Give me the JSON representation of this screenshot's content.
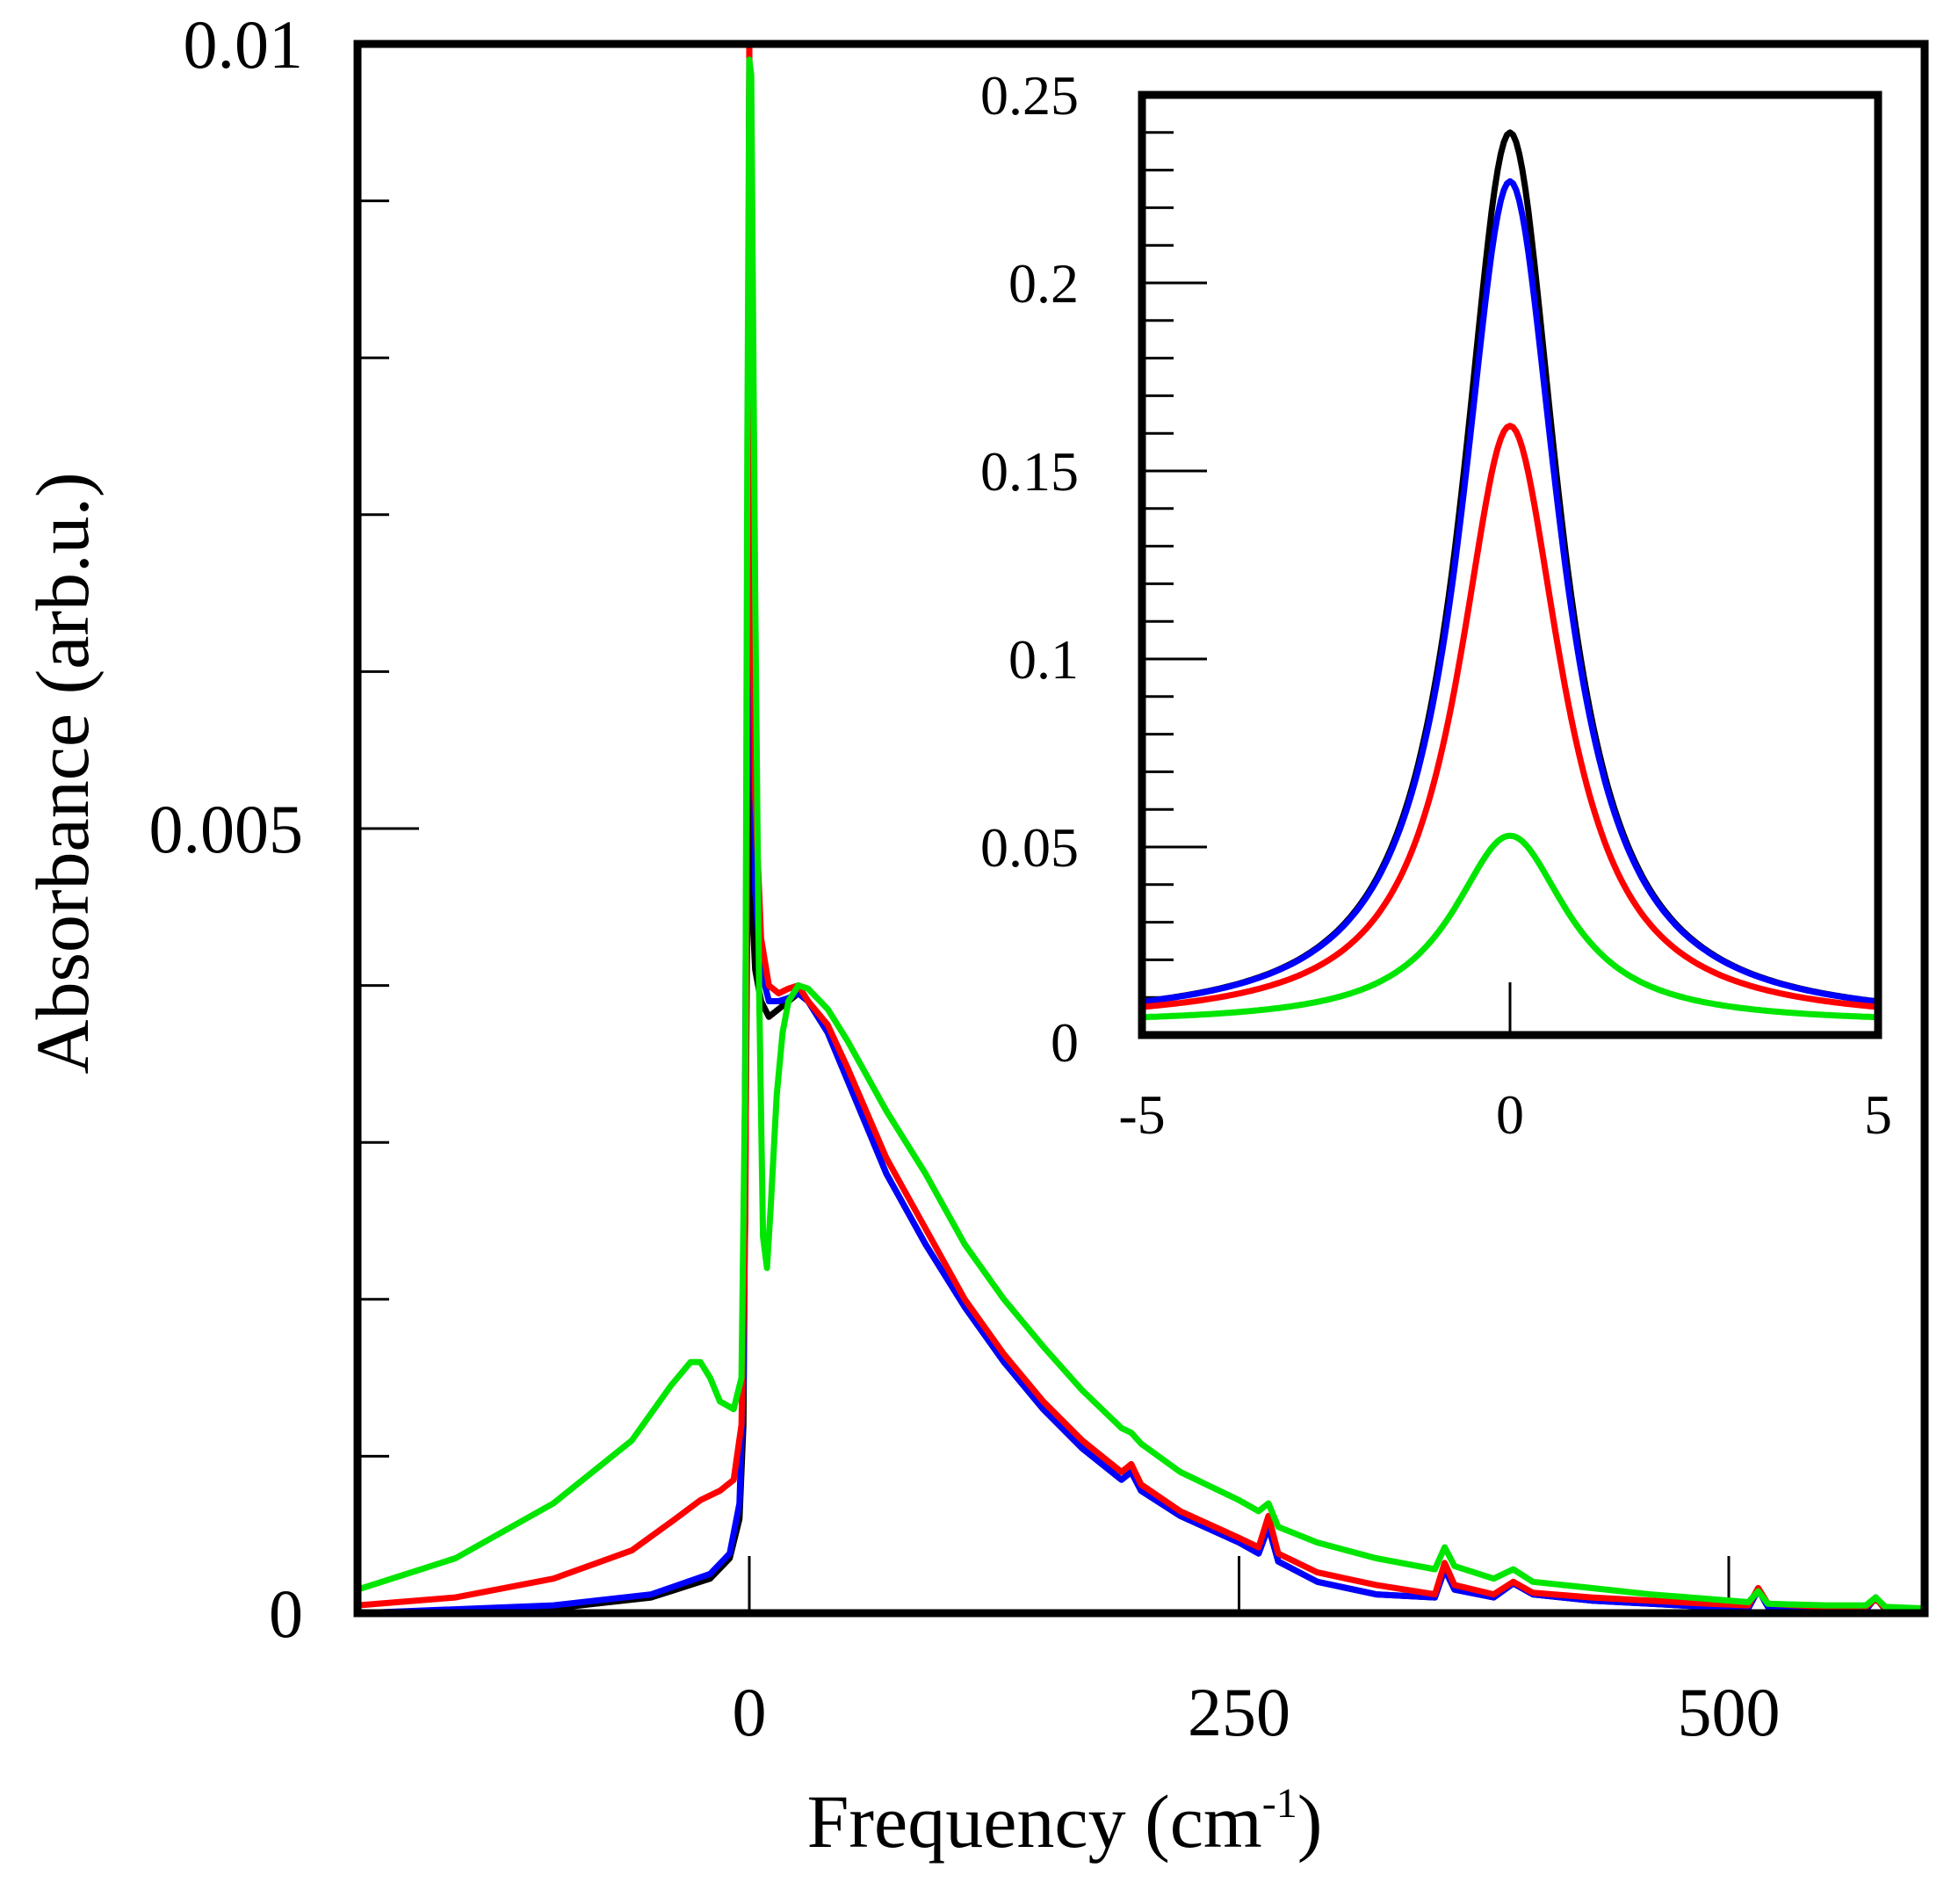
{
  "chart_data": {
    "main": {
      "type": "line",
      "xlabel": {
        "text": "Frequency (cm",
        "sup": "-1",
        "close": ")"
      },
      "ylabel": "Absorbance (arb.u.)",
      "xlim": [
        -200,
        600
      ],
      "ylim": [
        0,
        0.01
      ],
      "xticks": [
        0,
        250,
        500
      ],
      "xtick_labels": [
        "0",
        "250",
        "500"
      ],
      "yticks_major": [
        0,
        0.005,
        0.01
      ],
      "ytick_labels": [
        "0",
        "0.005",
        "0.01"
      ],
      "yticks_minor": [
        0.001,
        0.002,
        0.003,
        0.004,
        0.006,
        0.007,
        0.008,
        0.009
      ],
      "series": [
        {
          "name": "black",
          "color": "#000000",
          "x": [
            -200,
            -100,
            -50,
            -20,
            -10,
            -5,
            -3,
            -1,
            0,
            1,
            3,
            6,
            10,
            15,
            20,
            25,
            30,
            40,
            50,
            70,
            90,
            110,
            130,
            150,
            170,
            190,
            195,
            200,
            220,
            250,
            260,
            265,
            270,
            290,
            320,
            350,
            355,
            360,
            380,
            390,
            400,
            430,
            460,
            490,
            510,
            515,
            520,
            550,
            570,
            575,
            580,
            600
          ],
          "y": [
            0,
            3e-05,
            0.0001,
            0.00022,
            0.00035,
            0.0006,
            0.0012,
            0.0045,
            0.0067,
            0.0046,
            0.0041,
            0.0039,
            0.0038,
            0.00385,
            0.0039,
            0.00395,
            0.0039,
            0.0037,
            0.0034,
            0.0028,
            0.00235,
            0.00195,
            0.0016,
            0.0013,
            0.00105,
            0.00085,
            0.0009,
            0.00078,
            0.00062,
            0.00045,
            0.00038,
            0.00055,
            0.00033,
            0.0002,
            0.00012,
            0.0001,
            0.00028,
            0.00015,
            0.0001,
            0.00019,
            0.00012,
            8e-05,
            6e-05,
            4e-05,
            3e-05,
            0.00015,
            4e-05,
            2e-05,
            2e-05,
            0.0001,
            2e-05,
            1e-05
          ]
        },
        {
          "name": "blue",
          "color": "#0000ff",
          "x": [
            -200,
            -100,
            -50,
            -20,
            -10,
            -5,
            -3,
            -1,
            0,
            1,
            3,
            6,
            10,
            15,
            20,
            25,
            30,
            40,
            50,
            70,
            90,
            110,
            130,
            150,
            170,
            190,
            195,
            200,
            220,
            250,
            260,
            265,
            270,
            290,
            320,
            350,
            355,
            360,
            380,
            390,
            400,
            430,
            460,
            490,
            510,
            515,
            520,
            550,
            570,
            575,
            580,
            600
          ],
          "y": [
            0,
            5e-05,
            0.00012,
            0.00025,
            0.00038,
            0.0007,
            0.0015,
            0.006,
            0.0099,
            0.0062,
            0.0046,
            0.0041,
            0.0039,
            0.0039,
            0.00392,
            0.00395,
            0.0039,
            0.0037,
            0.0034,
            0.0028,
            0.00235,
            0.00195,
            0.0016,
            0.0013,
            0.00105,
            0.00085,
            0.0009,
            0.00078,
            0.00062,
            0.00045,
            0.00038,
            0.00055,
            0.00033,
            0.0002,
            0.00012,
            0.0001,
            0.00028,
            0.00015,
            0.0001,
            0.00019,
            0.00012,
            8e-05,
            6e-05,
            4e-05,
            3e-05,
            0.00015,
            4e-05,
            2e-05,
            2e-05,
            0.0001,
            2e-05,
            1e-05
          ]
        },
        {
          "name": "red",
          "color": "#ff0000",
          "x": [
            -200,
            -150,
            -100,
            -60,
            -40,
            -25,
            -15,
            -8,
            -4,
            -2,
            -1,
            0,
            1,
            3,
            6,
            10,
            15,
            20,
            25,
            30,
            40,
            50,
            70,
            90,
            110,
            130,
            150,
            170,
            190,
            195,
            200,
            220,
            250,
            260,
            265,
            270,
            290,
            320,
            350,
            355,
            360,
            380,
            390,
            400,
            430,
            460,
            490,
            510,
            515,
            520,
            550,
            570,
            575,
            580,
            600
          ],
          "y": [
            5e-05,
            0.0001,
            0.00022,
            0.0004,
            0.00058,
            0.00072,
            0.00078,
            0.00085,
            0.0012,
            0.0025,
            0.0055,
            0.01,
            0.0075,
            0.0052,
            0.0043,
            0.004,
            0.00395,
            0.00398,
            0.004,
            0.0039,
            0.00375,
            0.00348,
            0.0029,
            0.00245,
            0.002,
            0.00165,
            0.00135,
            0.0011,
            0.0009,
            0.00095,
            0.00082,
            0.00065,
            0.00048,
            0.00042,
            0.00062,
            0.00038,
            0.00026,
            0.00018,
            0.00012,
            0.00032,
            0.00018,
            0.00012,
            0.0002,
            0.00013,
            0.0001,
            8e-05,
            6e-05,
            5e-05,
            0.00016,
            6e-05,
            4e-05,
            4e-05,
            9e-05,
            3e-05,
            2e-05
          ]
        },
        {
          "name": "green",
          "color": "#00e600",
          "x": [
            -200,
            -150,
            -100,
            -60,
            -40,
            -30,
            -25,
            -20,
            -15,
            -8,
            -4,
            -2,
            -1,
            0,
            1,
            3,
            5,
            7,
            9,
            11,
            14,
            17,
            20,
            25,
            30,
            40,
            50,
            70,
            90,
            110,
            130,
            150,
            170,
            190,
            195,
            200,
            220,
            250,
            260,
            265,
            270,
            290,
            320,
            350,
            355,
            360,
            380,
            390,
            400,
            430,
            460,
            490,
            510,
            515,
            520,
            550,
            570,
            575,
            580,
            600
          ],
          "y": [
            0.00015,
            0.00035,
            0.0007,
            0.0011,
            0.00145,
            0.0016,
            0.0016,
            0.0015,
            0.00135,
            0.0013,
            0.0015,
            0.0035,
            0.0075,
            0.0099,
            0.0098,
            0.0065,
            0.004,
            0.0024,
            0.0022,
            0.0026,
            0.0033,
            0.0037,
            0.0039,
            0.004,
            0.00398,
            0.00385,
            0.00365,
            0.0032,
            0.0028,
            0.00235,
            0.002,
            0.0017,
            0.00142,
            0.00118,
            0.00115,
            0.00108,
            0.0009,
            0.00072,
            0.00065,
            0.0007,
            0.00055,
            0.00045,
            0.00035,
            0.00028,
            0.00042,
            0.0003,
            0.00022,
            0.00028,
            0.0002,
            0.00016,
            0.00012,
            9e-05,
            7e-05,
            0.00014,
            6e-05,
            5e-05,
            5e-05,
            0.0001,
            4e-05,
            3e-05
          ]
        }
      ]
    },
    "inset": {
      "type": "line",
      "xlim": [
        -5,
        5
      ],
      "ylim": [
        0,
        0.25
      ],
      "xticks": [
        -5,
        0,
        5
      ],
      "xtick_labels": [
        "-5",
        "0",
        "5"
      ],
      "yticks_major": [
        0,
        0.05,
        0.1,
        0.15,
        0.2,
        0.25
      ],
      "ytick_labels": [
        "0",
        "0.05",
        "0.1",
        "0.15",
        "0.2",
        "0.25"
      ],
      "yticks_minor": [
        0.01,
        0.02,
        0.03,
        0.04,
        0.06,
        0.07,
        0.08,
        0.09,
        0.11,
        0.12,
        0.13,
        0.14,
        0.16,
        0.17,
        0.18,
        0.19,
        0.21,
        0.22,
        0.23,
        0.24
      ],
      "series": [
        {
          "name": "black",
          "color": "#000000",
          "peak": 0.24,
          "center": 0.0,
          "hwhm": 0.8,
          "baseline": 0.003
        },
        {
          "name": "blue",
          "color": "#0000ff",
          "peak": 0.227,
          "center": 0.0,
          "hwhm": 0.82,
          "baseline": 0.003
        },
        {
          "name": "red",
          "color": "#ff0000",
          "peak": 0.162,
          "center": 0.0,
          "hwhm": 0.85,
          "baseline": 0.003
        },
        {
          "name": "green",
          "color": "#00e600",
          "peak": 0.053,
          "center": 0.0,
          "hwhm": 0.95,
          "baseline": 0.003
        }
      ]
    }
  }
}
